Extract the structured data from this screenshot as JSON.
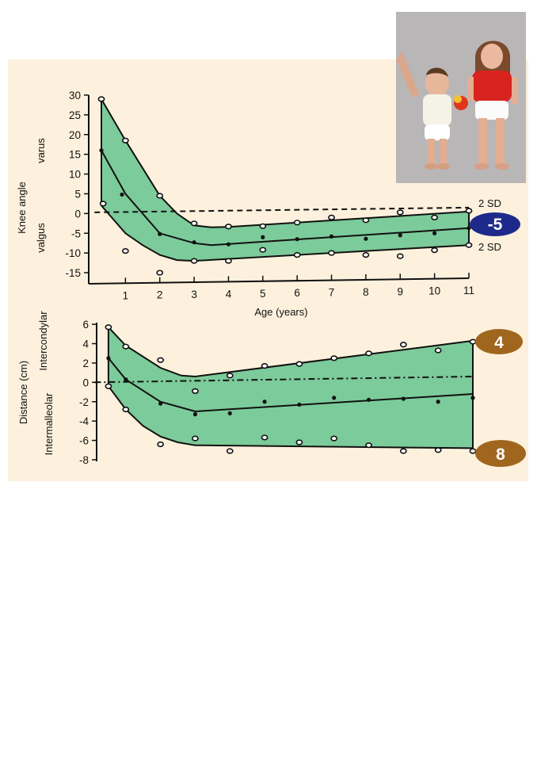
{
  "chart_data": [
    {
      "type": "area",
      "ylabel": "Knee angle",
      "ylabel_top": "varus",
      "ylabel_bottom": "valgus",
      "xlabel": "Age (years)",
      "x_ticks": [
        1,
        2,
        3,
        4,
        5,
        6,
        7,
        8,
        9,
        10,
        11
      ],
      "y_ticks": [
        30,
        25,
        20,
        15,
        10,
        5,
        0,
        -5,
        -10,
        -15
      ],
      "xlim": [
        0,
        11
      ],
      "ylim": [
        -17,
        31
      ],
      "band_label_upper": "2 SD",
      "band_label_lower": "2 SD",
      "badge": {
        "text": "-5",
        "color": "#1e2a8a"
      },
      "band_color": "#7ccb9a",
      "upper": [
        [
          0.3,
          29
        ],
        [
          1,
          18.5
        ],
        [
          2,
          4.5
        ],
        [
          2.5,
          0
        ],
        [
          3,
          -3
        ],
        [
          3.5,
          -3.5
        ],
        [
          4,
          -3.4
        ],
        [
          11,
          0.5
        ]
      ],
      "mean": [
        [
          0.3,
          16
        ],
        [
          1,
          5
        ],
        [
          2,
          -5
        ],
        [
          3,
          -7.5
        ],
        [
          3.5,
          -8
        ],
        [
          11,
          -3.7
        ]
      ],
      "lower": [
        [
          0.3,
          2
        ],
        [
          1,
          -5
        ],
        [
          1.5,
          -8
        ],
        [
          2,
          -10.5
        ],
        [
          2.5,
          -11.8
        ],
        [
          3,
          -12
        ],
        [
          11,
          -8
        ]
      ],
      "reference": [
        [
          0.1,
          0.3
        ],
        [
          11,
          1.5
        ]
      ],
      "points_open": [
        [
          0.3,
          29
        ],
        [
          1,
          18.5
        ],
        [
          0.35,
          2.5
        ],
        [
          1,
          -9.5
        ],
        [
          2,
          4.5
        ],
        [
          2,
          -15
        ],
        [
          3,
          -2.5
        ],
        [
          3,
          -12
        ],
        [
          4,
          -3.3
        ],
        [
          4,
          -12
        ],
        [
          5,
          -3.2
        ],
        [
          5,
          -9.2
        ],
        [
          6,
          -2.3
        ],
        [
          6,
          -10.5
        ],
        [
          7,
          -1
        ],
        [
          7,
          -10
        ],
        [
          8,
          -1.7
        ],
        [
          8,
          -10.5
        ],
        [
          9,
          0.3
        ],
        [
          9,
          -10.8
        ],
        [
          10,
          -1
        ],
        [
          10,
          -9.3
        ],
        [
          11,
          0.7
        ],
        [
          11,
          -8
        ]
      ],
      "points_filled": [
        [
          0.3,
          16
        ],
        [
          0.9,
          4.8
        ],
        [
          2,
          -5.2
        ],
        [
          3,
          -7.3
        ],
        [
          4,
          -7.8
        ],
        [
          5,
          -6
        ],
        [
          6,
          -6.5
        ],
        [
          7,
          -5.8
        ],
        [
          8,
          -6.4
        ],
        [
          9,
          -5.5
        ],
        [
          10,
          -5
        ],
        [
          11,
          -3.7
        ]
      ]
    },
    {
      "type": "area",
      "ylabel": "Distance (cm)",
      "ylabel_top": "Intercondylar",
      "ylabel_bottom": "Intermalleolar",
      "y_ticks": [
        6,
        4,
        2,
        0,
        -2,
        -4,
        -6,
        -8
      ],
      "xlim": [
        0,
        11
      ],
      "ylim": [
        -8,
        6.5
      ],
      "badge_top": {
        "text": "4",
        "color": "#a0661e"
      },
      "badge_bottom": {
        "text": "8",
        "color": "#a0661e"
      },
      "band_color": "#7ccb9a",
      "upper": [
        [
          0.5,
          5.7
        ],
        [
          1,
          3.8
        ],
        [
          2,
          1.5
        ],
        [
          2.6,
          0.7
        ],
        [
          3,
          0.6
        ],
        [
          11,
          4.3
        ]
      ],
      "mean": [
        [
          0.5,
          2.5
        ],
        [
          1,
          0.3
        ],
        [
          2,
          -2
        ],
        [
          3,
          -3
        ],
        [
          11,
          -1.2
        ]
      ],
      "lower": [
        [
          0.5,
          -0.4
        ],
        [
          1,
          -2.8
        ],
        [
          1.5,
          -4.5
        ],
        [
          2,
          -5.6
        ],
        [
          2.5,
          -6.2
        ],
        [
          3,
          -6.5
        ],
        [
          11,
          -6.8
        ]
      ],
      "reference": [
        [
          0.1,
          0.0
        ],
        [
          11,
          0.6
        ]
      ],
      "points_open": [
        [
          0.5,
          5.7
        ],
        [
          1,
          3.7
        ],
        [
          2,
          2.3
        ],
        [
          0.5,
          -0.4
        ],
        [
          1,
          -2.8
        ],
        [
          2,
          -6.4
        ],
        [
          3,
          -0.9
        ],
        [
          3,
          -5.8
        ],
        [
          4,
          0.7
        ],
        [
          4,
          -7.1
        ],
        [
          5,
          1.7
        ],
        [
          5,
          -5.7
        ],
        [
          6,
          1.9
        ],
        [
          6,
          -6.2
        ],
        [
          7,
          2.5
        ],
        [
          7,
          -5.8
        ],
        [
          8,
          3.0
        ],
        [
          8,
          -6.5
        ],
        [
          9,
          3.9
        ],
        [
          9,
          -7.1
        ],
        [
          10,
          3.3
        ],
        [
          10,
          -7.0
        ],
        [
          11,
          4.2
        ],
        [
          11,
          -7.1
        ]
      ],
      "points_filled": [
        [
          0.5,
          2.5
        ],
        [
          1,
          0.3
        ],
        [
          2,
          -2.2
        ],
        [
          3,
          -3.3
        ],
        [
          4,
          -3.2
        ],
        [
          5,
          -2.0
        ],
        [
          6,
          -2.3
        ],
        [
          7,
          -1.6
        ],
        [
          8,
          -1.8
        ],
        [
          9,
          -1.7
        ],
        [
          10,
          -2.0
        ],
        [
          11,
          -1.6
        ]
      ]
    }
  ]
}
